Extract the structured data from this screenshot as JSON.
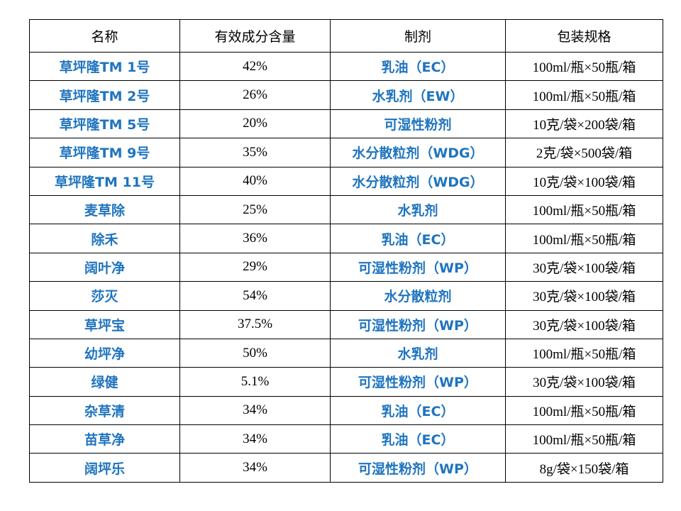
{
  "table": {
    "headers": [
      "名称",
      "有效成分含量",
      "制剂",
      "包装规格"
    ],
    "rows": [
      {
        "name": "草坪隆TM 1号",
        "content": "42%",
        "form": "乳油（EC）",
        "pack": "100ml/瓶×50瓶/箱"
      },
      {
        "name": "草坪隆TM 2号",
        "content": "26%",
        "form": "水乳剂（EW）",
        "pack": "100ml/瓶×50瓶/箱"
      },
      {
        "name": "草坪隆TM 5号",
        "content": "20%",
        "form": "可湿性粉剂",
        "pack": "10克/袋×200袋/箱"
      },
      {
        "name": "草坪隆TM 9号",
        "content": "35%",
        "form": "水分散粒剂（WDG）",
        "pack": "2克/袋×500袋/箱"
      },
      {
        "name": "草坪隆TM 11号",
        "content": "40%",
        "form": "水分散粒剂（WDG）",
        "pack": "10克/袋×100袋/箱"
      },
      {
        "name": "麦草除",
        "content": "25%",
        "form": "水乳剂",
        "pack": "100ml/瓶×50瓶/箱"
      },
      {
        "name": "除禾",
        "content": "36%",
        "form": "乳油（EC）",
        "pack": "100ml/瓶×50瓶/箱"
      },
      {
        "name": "阔叶净",
        "content": "29%",
        "form": "可湿性粉剂（WP）",
        "pack": "30克/袋×100袋/箱"
      },
      {
        "name": "莎灭",
        "content": "54%",
        "form": "水分散粒剂",
        "pack": "30克/袋×100袋/箱"
      },
      {
        "name": "草坪宝",
        "content": "37.5%",
        "form": "可湿性粉剂（WP）",
        "pack": "30克/袋×100袋/箱"
      },
      {
        "name": "幼坪净",
        "content": "50%",
        "form": "水乳剂",
        "pack": "100ml/瓶×50瓶/箱"
      },
      {
        "name": "绿健",
        "content": "5.1%",
        "form": "可湿性粉剂（WP）",
        "pack": "30克/袋×100袋/箱"
      },
      {
        "name": "杂草清",
        "content": "34%",
        "form": "乳油（EC）",
        "pack": "100ml/瓶×50瓶/箱"
      },
      {
        "name": "苗草净",
        "content": "34%",
        "form": "乳油（EC）",
        "pack": "100ml/瓶×50瓶/箱"
      },
      {
        "name": "阔坪乐",
        "content": "34%",
        "form": "可湿性粉剂（WP）",
        "pack": "8g/袋×150袋/箱"
      }
    ]
  },
  "colors": {
    "accent_text": "#1f74bf",
    "body_text": "#000000",
    "border": "#000000",
    "background": "#ffffff"
  }
}
